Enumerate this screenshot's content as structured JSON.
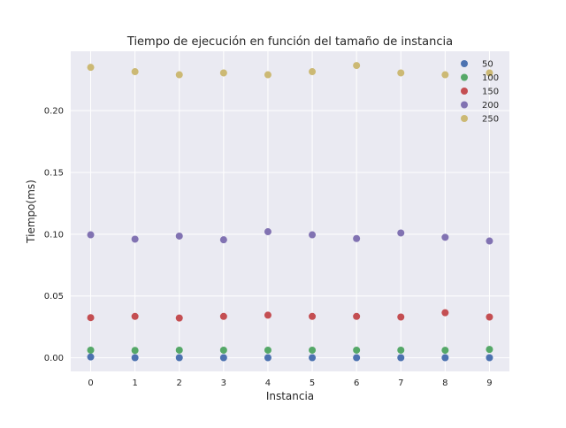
{
  "chart_data": {
    "type": "scatter",
    "title": "Tiempo de ejecución en función del tamaño de instancia",
    "xlabel": "Instancia",
    "ylabel": "Tiempo(ms)",
    "x": [
      0,
      1,
      2,
      3,
      4,
      5,
      6,
      7,
      8,
      9
    ],
    "xticks": [
      "0",
      "1",
      "2",
      "3",
      "4",
      "5",
      "6",
      "7",
      "8",
      "9"
    ],
    "xlim": [
      -0.45,
      9.45
    ],
    "yticks": [
      0.0,
      0.05,
      0.1,
      0.15,
      0.2
    ],
    "ytick_labels": [
      "0.00",
      "0.05",
      "0.10",
      "0.15",
      "0.20"
    ],
    "ylim": [
      -0.011,
      0.248
    ],
    "grid": true,
    "legend_position": "top-right",
    "series": [
      {
        "name": "50",
        "color": "#4c72b0",
        "values": [
          0.0007,
          0.0001,
          0.0001,
          0.0001,
          0.0001,
          0.0001,
          0.0001,
          0.0001,
          0.0001,
          0.0001
        ]
      },
      {
        "name": "100",
        "color": "#55a868",
        "values": [
          0.0062,
          0.006,
          0.0062,
          0.0062,
          0.0062,
          0.0062,
          0.0062,
          0.0062,
          0.0061,
          0.0068
        ]
      },
      {
        "name": "150",
        "color": "#c44e52",
        "values": [
          0.0325,
          0.0335,
          0.0322,
          0.0335,
          0.0345,
          0.0335,
          0.0335,
          0.033,
          0.0365,
          0.033
        ]
      },
      {
        "name": "200",
        "color": "#8172b2",
        "values": [
          0.0995,
          0.096,
          0.0985,
          0.0955,
          0.102,
          0.0995,
          0.0965,
          0.101,
          0.0975,
          0.0945
        ]
      },
      {
        "name": "250",
        "color": "#ccb974",
        "values": [
          0.235,
          0.2315,
          0.229,
          0.2305,
          0.229,
          0.2315,
          0.2365,
          0.2305,
          0.229,
          0.2305
        ]
      }
    ]
  }
}
